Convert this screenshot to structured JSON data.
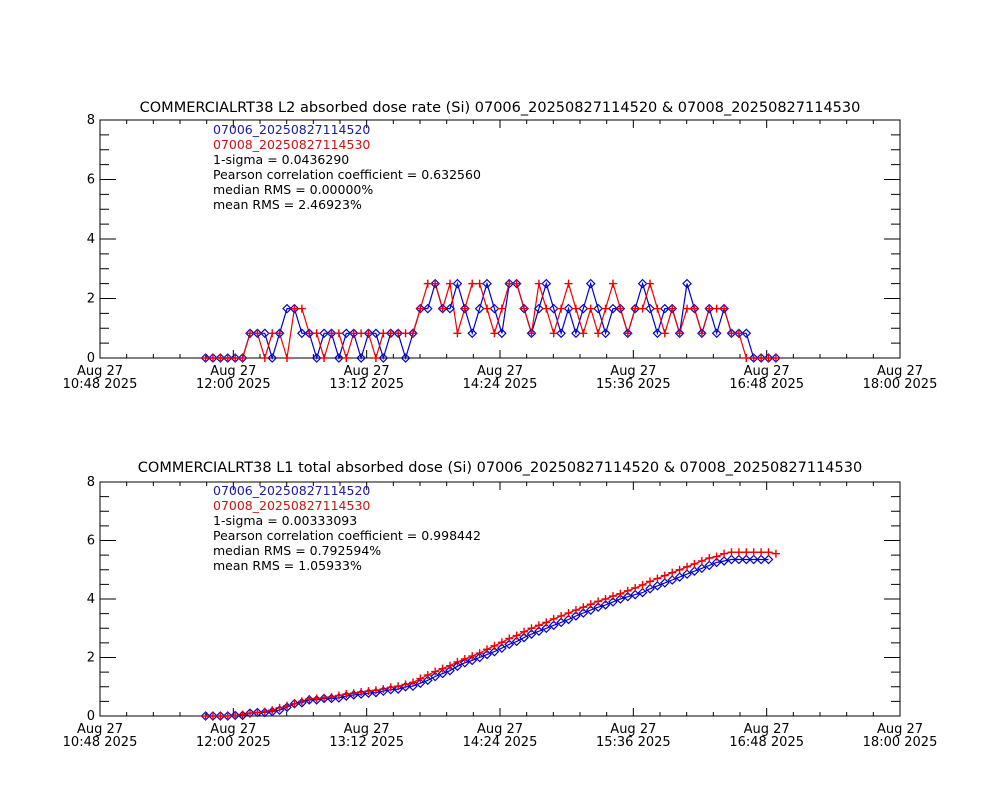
{
  "chart_data": [
    {
      "type": "line",
      "title": "COMMERCIALRT38 L2 absorbed dose rate (Si) 07006_20250827114520 & 07008_20250827114530",
      "xlabel": "",
      "ylabel": "",
      "ylim": [
        0,
        8
      ],
      "yticks": [
        "0",
        "2",
        "4",
        "6",
        "8"
      ],
      "yminor_step": 0.5,
      "xticks": [
        {
          "date": "Aug 27",
          "time": "10:48 2025"
        },
        {
          "date": "Aug 27",
          "time": "12:00 2025"
        },
        {
          "date": "Aug 27",
          "time": "13:12 2025"
        },
        {
          "date": "Aug 27",
          "time": "14:24 2025"
        },
        {
          "date": "Aug 27",
          "time": "15:36 2025"
        },
        {
          "date": "Aug 27",
          "time": "16:48 2025"
        },
        {
          "date": "Aug 27",
          "time": "18:00 2025"
        }
      ],
      "x_unit": "minutes after Aug 27 10:48 2025",
      "xlim": [
        0,
        432
      ],
      "grid": false,
      "annotations": {
        "series1_label": "07006_20250827114520",
        "series2_label": "07008_20250827114530",
        "sigma": "1-sigma = 0.0436290",
        "pearson": "Pearson correlation coefficient = 0.632560",
        "median_rms": "median RMS = 0.00000%",
        "mean_rms": "mean RMS = 2.46923%"
      },
      "series": [
        {
          "name": "07006_20250827114520",
          "color": "#0000cc",
          "marker": "diamond",
          "x": [
            57,
            61,
            65,
            69,
            73,
            77,
            81,
            85,
            89,
            93,
            97,
            101,
            105,
            109,
            113,
            117,
            121,
            125,
            129,
            133,
            137,
            141,
            145,
            149,
            153,
            157,
            161,
            165,
            169,
            173,
            177,
            181,
            185,
            189,
            193,
            197,
            201,
            205,
            209,
            213,
            217,
            221,
            225,
            229,
            233,
            237,
            241,
            245,
            249,
            253,
            257,
            261,
            265,
            269,
            273,
            277,
            281,
            285,
            289,
            293,
            297,
            301,
            305,
            309,
            313,
            317,
            321,
            325,
            329,
            333,
            337,
            341,
            345,
            349,
            353,
            357,
            361,
            365
          ],
          "values": [
            0,
            0,
            0,
            0,
            0,
            0,
            0.83,
            0.83,
            0.83,
            0,
            0.83,
            1.66,
            1.66,
            0.83,
            0.83,
            0,
            0.83,
            0.83,
            0,
            0.83,
            0.83,
            0,
            0.83,
            0.83,
            0,
            0.83,
            0.83,
            0,
            0.83,
            1.66,
            1.66,
            2.5,
            1.66,
            1.66,
            2.5,
            1.66,
            0.83,
            1.66,
            2.5,
            1.66,
            0.83,
            2.5,
            2.5,
            1.66,
            0.83,
            1.66,
            2.5,
            1.66,
            0.83,
            1.66,
            0.83,
            1.66,
            2.5,
            1.66,
            0.83,
            1.66,
            1.66,
            0.83,
            1.66,
            2.5,
            1.66,
            0.83,
            1.66,
            1.66,
            0.83,
            2.5,
            1.66,
            0.83,
            1.66,
            0.83,
            1.66,
            0.83,
            0.83,
            0.83,
            0,
            0,
            0,
            0
          ]
        },
        {
          "name": "07008_20250827114530",
          "color": "#ee0000",
          "marker": "plus",
          "x": [
            57,
            61,
            65,
            69,
            73,
            77,
            81,
            85,
            89,
            93,
            97,
            101,
            105,
            109,
            113,
            117,
            121,
            125,
            129,
            133,
            137,
            141,
            145,
            149,
            153,
            157,
            161,
            165,
            169,
            173,
            177,
            181,
            185,
            189,
            193,
            197,
            201,
            205,
            209,
            213,
            217,
            221,
            225,
            229,
            233,
            237,
            241,
            245,
            249,
            253,
            257,
            261,
            265,
            269,
            273,
            277,
            281,
            285,
            289,
            293,
            297,
            301,
            305,
            309,
            313,
            317,
            321,
            325,
            329,
            333,
            337,
            341,
            345,
            349,
            353,
            357,
            361,
            365
          ],
          "values": [
            0,
            0,
            0,
            0,
            0,
            0,
            0.83,
            0.83,
            0,
            0.83,
            0.83,
            0,
            1.66,
            1.66,
            0.83,
            0.83,
            0,
            0.83,
            0.83,
            0,
            0.83,
            0.83,
            0.83,
            0,
            0.83,
            0.83,
            0.83,
            0.83,
            0.83,
            1.66,
            2.5,
            2.5,
            1.66,
            2.5,
            0.83,
            1.66,
            2.5,
            2.5,
            1.66,
            0.83,
            1.66,
            2.5,
            2.5,
            1.66,
            0.83,
            2.5,
            1.66,
            0.83,
            1.66,
            2.5,
            1.66,
            0.83,
            1.66,
            0.83,
            1.66,
            2.5,
            1.66,
            0.83,
            1.66,
            1.66,
            2.5,
            1.66,
            0.83,
            1.66,
            0.83,
            1.66,
            1.66,
            0.83,
            1.66,
            1.66,
            1.66,
            0.83,
            0.83,
            0,
            0,
            0,
            0,
            0
          ]
        }
      ]
    },
    {
      "type": "line",
      "title": "COMMERCIALRT38 L1 total absorbed dose (Si) 07006_20250827114520 & 07008_20250827114530",
      "xlabel": "",
      "ylabel": "",
      "ylim": [
        0,
        8
      ],
      "yticks": [
        "0",
        "2",
        "4",
        "6",
        "8"
      ],
      "yminor_step": 0.5,
      "xticks": [
        {
          "date": "Aug 27",
          "time": "10:48 2025"
        },
        {
          "date": "Aug 27",
          "time": "12:00 2025"
        },
        {
          "date": "Aug 27",
          "time": "13:12 2025"
        },
        {
          "date": "Aug 27",
          "time": "14:24 2025"
        },
        {
          "date": "Aug 27",
          "time": "15:36 2025"
        },
        {
          "date": "Aug 27",
          "time": "16:48 2025"
        },
        {
          "date": "Aug 27",
          "time": "18:00 2025"
        }
      ],
      "x_unit": "minutes after Aug 27 10:48 2025",
      "xlim": [
        0,
        432
      ],
      "grid": false,
      "annotations": {
        "series1_label": "07006_20250827114520",
        "series2_label": "07008_20250827114530",
        "sigma": "1-sigma = 0.00333093",
        "pearson": "Pearson correlation coefficient = 0.998442",
        "median_rms": "median RMS = 0.792594%",
        "mean_rms": "mean RMS = 1.05933%"
      },
      "series": [
        {
          "name": "07006_20250827114520",
          "color": "#0000cc",
          "marker": "diamond",
          "x": [
            57,
            61,
            65,
            69,
            73,
            77,
            81,
            85,
            89,
            93,
            97,
            101,
            105,
            109,
            113,
            117,
            121,
            125,
            129,
            133,
            137,
            141,
            145,
            149,
            153,
            157,
            161,
            165,
            169,
            173,
            177,
            181,
            185,
            189,
            193,
            197,
            201,
            205,
            209,
            213,
            217,
            221,
            225,
            229,
            233,
            237,
            241,
            245,
            249,
            253,
            257,
            261,
            265,
            269,
            273,
            277,
            281,
            285,
            289,
            293,
            297,
            301,
            305,
            309,
            313,
            317,
            321,
            325,
            329,
            333,
            337,
            341,
            345,
            349,
            353,
            357,
            361
          ],
          "values": [
            0,
            0,
            0,
            0,
            0.02,
            0.02,
            0.1,
            0.12,
            0.12,
            0.15,
            0.2,
            0.3,
            0.42,
            0.45,
            0.55,
            0.55,
            0.6,
            0.6,
            0.62,
            0.68,
            0.72,
            0.75,
            0.78,
            0.8,
            0.85,
            0.9,
            0.92,
            1.0,
            1.02,
            1.12,
            1.22,
            1.35,
            1.45,
            1.55,
            1.7,
            1.82,
            1.9,
            2.0,
            2.1,
            2.2,
            2.32,
            2.45,
            2.55,
            2.68,
            2.8,
            2.9,
            3.0,
            3.1,
            3.2,
            3.3,
            3.42,
            3.52,
            3.62,
            3.72,
            3.8,
            3.9,
            4.0,
            4.08,
            4.15,
            4.22,
            4.35,
            4.45,
            4.55,
            4.65,
            4.75,
            4.85,
            4.95,
            5.05,
            5.15,
            5.25,
            5.3,
            5.35,
            5.35,
            5.35,
            5.35,
            5.35,
            5.35
          ]
        },
        {
          "name": "07008_20250827114530",
          "color": "#ee0000",
          "marker": "plus",
          "x": [
            57,
            61,
            65,
            69,
            73,
            77,
            81,
            85,
            89,
            93,
            97,
            101,
            105,
            109,
            113,
            117,
            121,
            125,
            129,
            133,
            137,
            141,
            145,
            149,
            153,
            157,
            161,
            165,
            169,
            173,
            177,
            181,
            185,
            189,
            193,
            197,
            201,
            205,
            209,
            213,
            217,
            221,
            225,
            229,
            233,
            237,
            241,
            245,
            249,
            253,
            257,
            261,
            265,
            269,
            273,
            277,
            281,
            285,
            289,
            293,
            297,
            301,
            305,
            309,
            313,
            317,
            321,
            325,
            329,
            333,
            337,
            341,
            345,
            349,
            353,
            357,
            361,
            365
          ],
          "values": [
            0,
            0,
            0,
            0,
            0.02,
            0.05,
            0.1,
            0.12,
            0.15,
            0.2,
            0.28,
            0.35,
            0.42,
            0.5,
            0.58,
            0.6,
            0.62,
            0.65,
            0.7,
            0.75,
            0.78,
            0.82,
            0.85,
            0.88,
            0.92,
            0.98,
            1.02,
            1.08,
            1.15,
            1.28,
            1.4,
            1.52,
            1.62,
            1.72,
            1.85,
            1.95,
            2.05,
            2.15,
            2.28,
            2.4,
            2.52,
            2.65,
            2.75,
            2.88,
            3.0,
            3.1,
            3.2,
            3.32,
            3.42,
            3.52,
            3.62,
            3.72,
            3.82,
            3.92,
            4.0,
            4.1,
            4.18,
            4.28,
            4.38,
            4.48,
            4.6,
            4.7,
            4.8,
            4.9,
            5.0,
            5.1,
            5.2,
            5.3,
            5.4,
            5.45,
            5.55,
            5.6,
            5.6,
            5.6,
            5.6,
            5.6,
            5.6,
            5.55
          ]
        }
      ]
    }
  ]
}
